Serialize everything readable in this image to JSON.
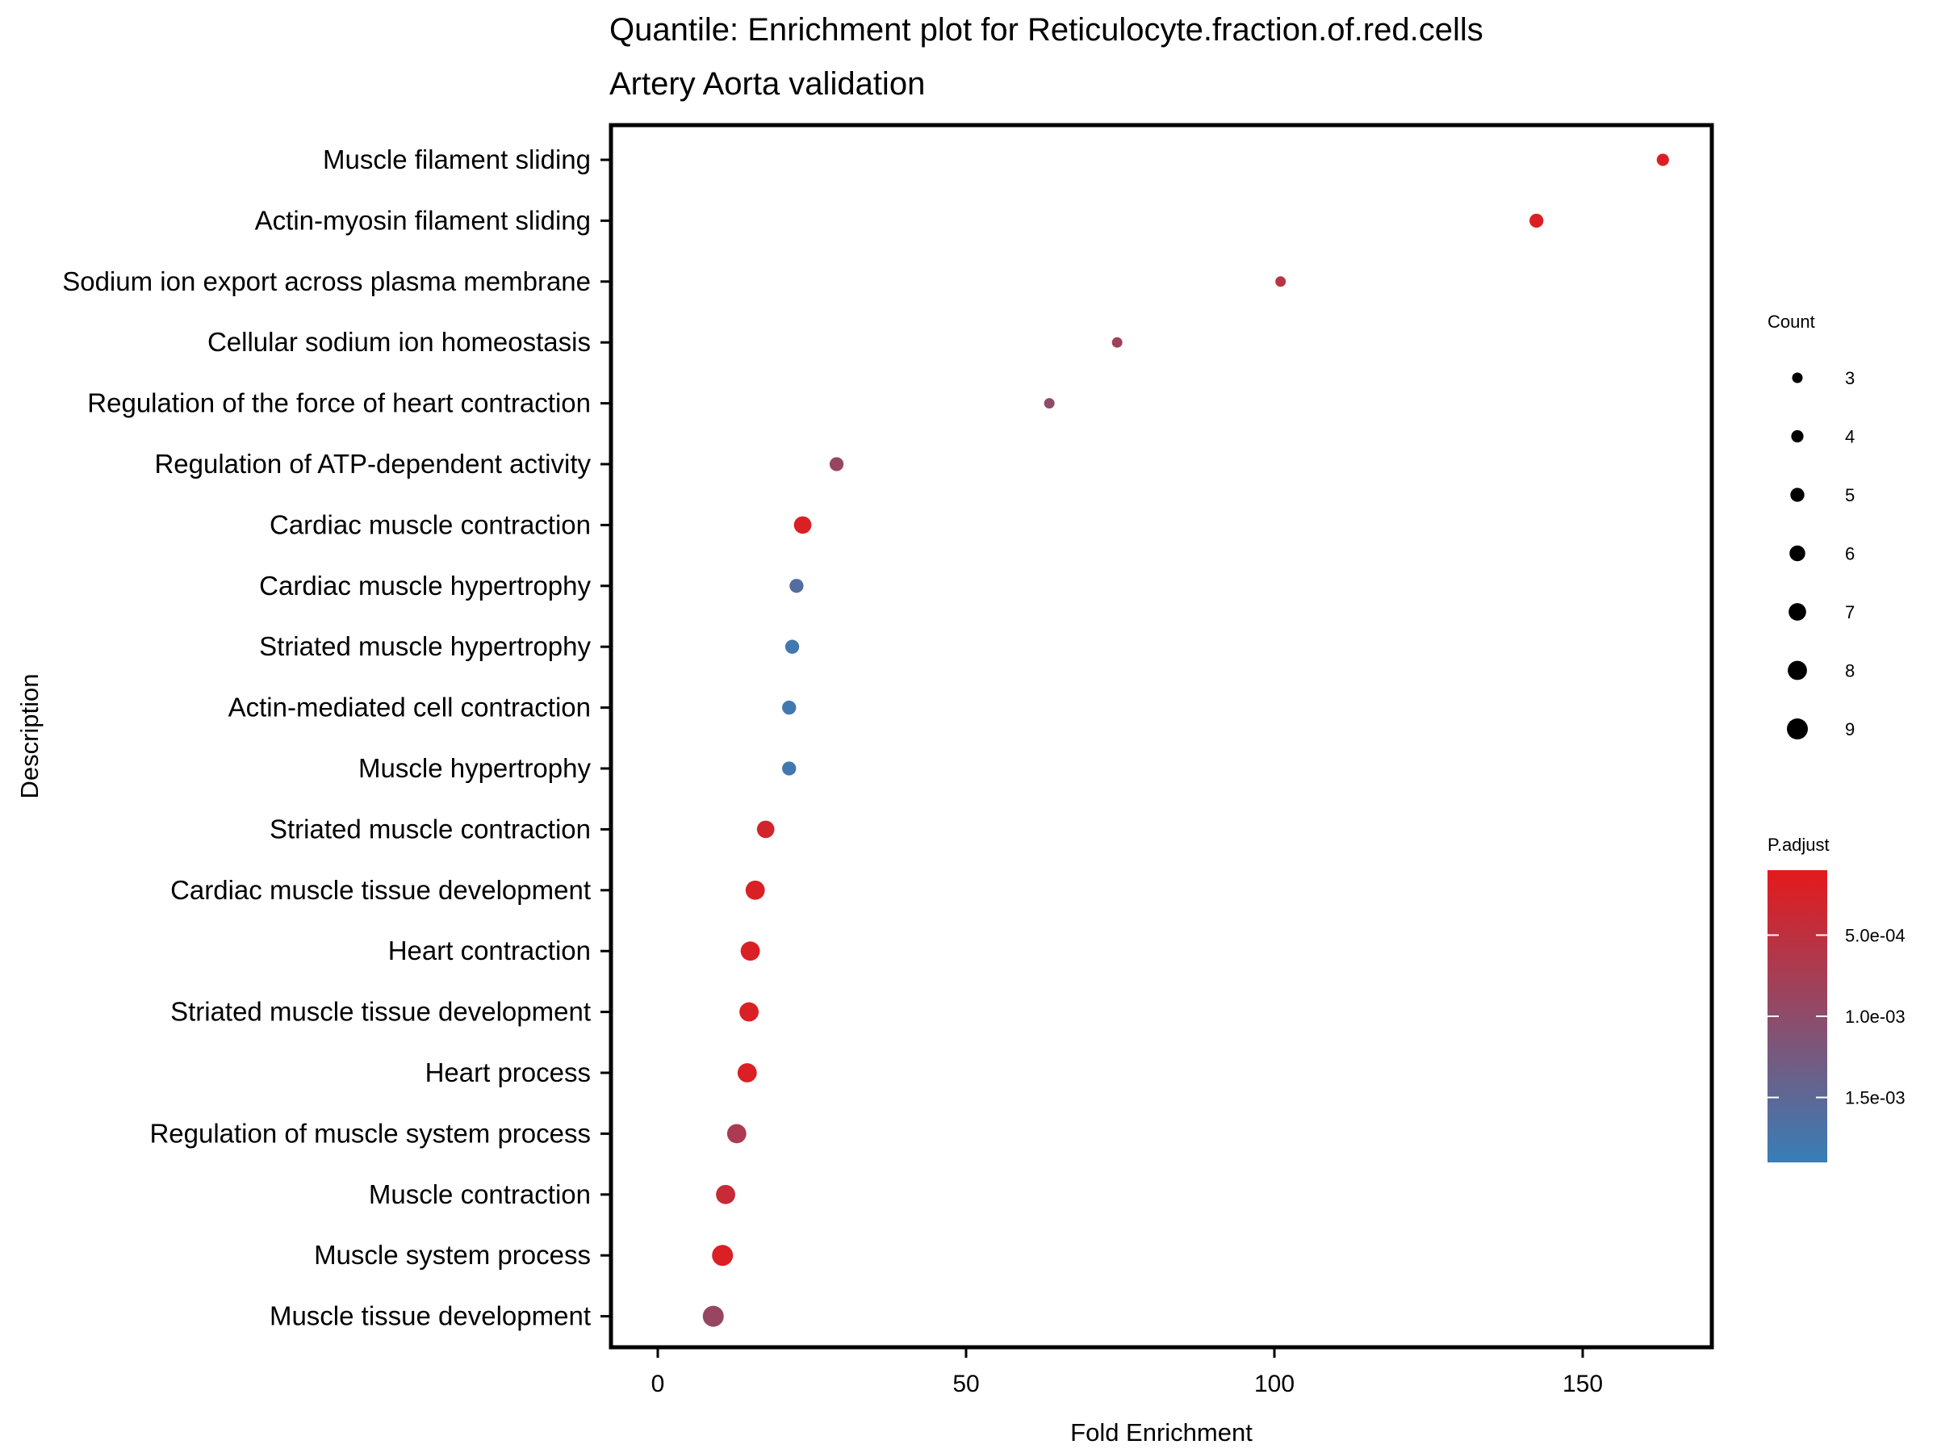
{
  "chart_data": {
    "type": "scatter",
    "title": "Quantile: Enrichment plot for Reticulocyte.fraction.of.red.cells",
    "subtitle": "Artery Aorta validation",
    "xlabel": "Fold Enrichment",
    "ylabel": "Description",
    "xlim": [
      -7.5,
      170
    ],
    "xticks": [
      0,
      50,
      100,
      150
    ],
    "grid": false,
    "points": [
      {
        "description": "Muscle filament sliding",
        "fold_enrichment": 163.0,
        "count": 4,
        "p_adjust": 0.0002
      },
      {
        "description": "Actin-myosin filament sliding",
        "fold_enrichment": 142.5,
        "count": 5,
        "p_adjust": 0.0002
      },
      {
        "description": "Sodium ion export across plasma membrane",
        "fold_enrichment": 101.0,
        "count": 3,
        "p_adjust": 0.0006
      },
      {
        "description": "Cellular sodium ion homeostasis",
        "fold_enrichment": 74.5,
        "count": 3,
        "p_adjust": 0.0008
      },
      {
        "description": "Regulation of the force of heart contraction",
        "fold_enrichment": 63.5,
        "count": 3,
        "p_adjust": 0.001
      },
      {
        "description": "Regulation of ATP-dependent activity",
        "fold_enrichment": 29.0,
        "count": 5,
        "p_adjust": 0.0009
      },
      {
        "description": "Cardiac muscle contraction",
        "fold_enrichment": 23.5,
        "count": 7,
        "p_adjust": 0.0002
      },
      {
        "description": "Cardiac muscle hypertrophy",
        "fold_enrichment": 22.5,
        "count": 5,
        "p_adjust": 0.0016
      },
      {
        "description": "Striated muscle hypertrophy",
        "fold_enrichment": 21.8,
        "count": 5,
        "p_adjust": 0.0018
      },
      {
        "description": "Actin-mediated cell contraction",
        "fold_enrichment": 21.3,
        "count": 5,
        "p_adjust": 0.0018
      },
      {
        "description": "Muscle hypertrophy",
        "fold_enrichment": 21.3,
        "count": 5,
        "p_adjust": 0.0018
      },
      {
        "description": "Striated muscle contraction",
        "fold_enrichment": 17.5,
        "count": 7,
        "p_adjust": 0.0003
      },
      {
        "description": "Cardiac muscle tissue development",
        "fold_enrichment": 15.8,
        "count": 8,
        "p_adjust": 0.0002
      },
      {
        "description": "Heart contraction",
        "fold_enrichment": 15.0,
        "count": 8,
        "p_adjust": 0.0002
      },
      {
        "description": "Striated muscle tissue development",
        "fold_enrichment": 14.8,
        "count": 8,
        "p_adjust": 0.0002
      },
      {
        "description": "Heart process",
        "fold_enrichment": 14.5,
        "count": 8,
        "p_adjust": 0.0002
      },
      {
        "description": "Regulation of muscle system process",
        "fold_enrichment": 12.8,
        "count": 8,
        "p_adjust": 0.0007
      },
      {
        "description": "Muscle contraction",
        "fold_enrichment": 11.0,
        "count": 8,
        "p_adjust": 0.0004
      },
      {
        "description": "Muscle system process",
        "fold_enrichment": 10.5,
        "count": 9,
        "p_adjust": 0.0002
      },
      {
        "description": "Muscle tissue development",
        "fold_enrichment": 9.0,
        "count": 9,
        "p_adjust": 0.0009
      }
    ],
    "legend": {
      "size": {
        "title": "Count",
        "values": [
          3,
          4,
          5,
          6,
          7,
          8,
          9
        ],
        "labels": [
          "3",
          "4",
          "5",
          "6",
          "7",
          "8",
          "9"
        ]
      },
      "color": {
        "title": "P.adjust",
        "range": [
          0.0001,
          0.0019
        ],
        "breaks": [
          0.0005,
          0.001,
          0.0015
        ],
        "labels": [
          "5.0e-04",
          "1.0e-03",
          "1.5e-03"
        ],
        "low_color": "#e41a1c",
        "high_color": "#377eb8"
      },
      "placement": "right"
    }
  }
}
